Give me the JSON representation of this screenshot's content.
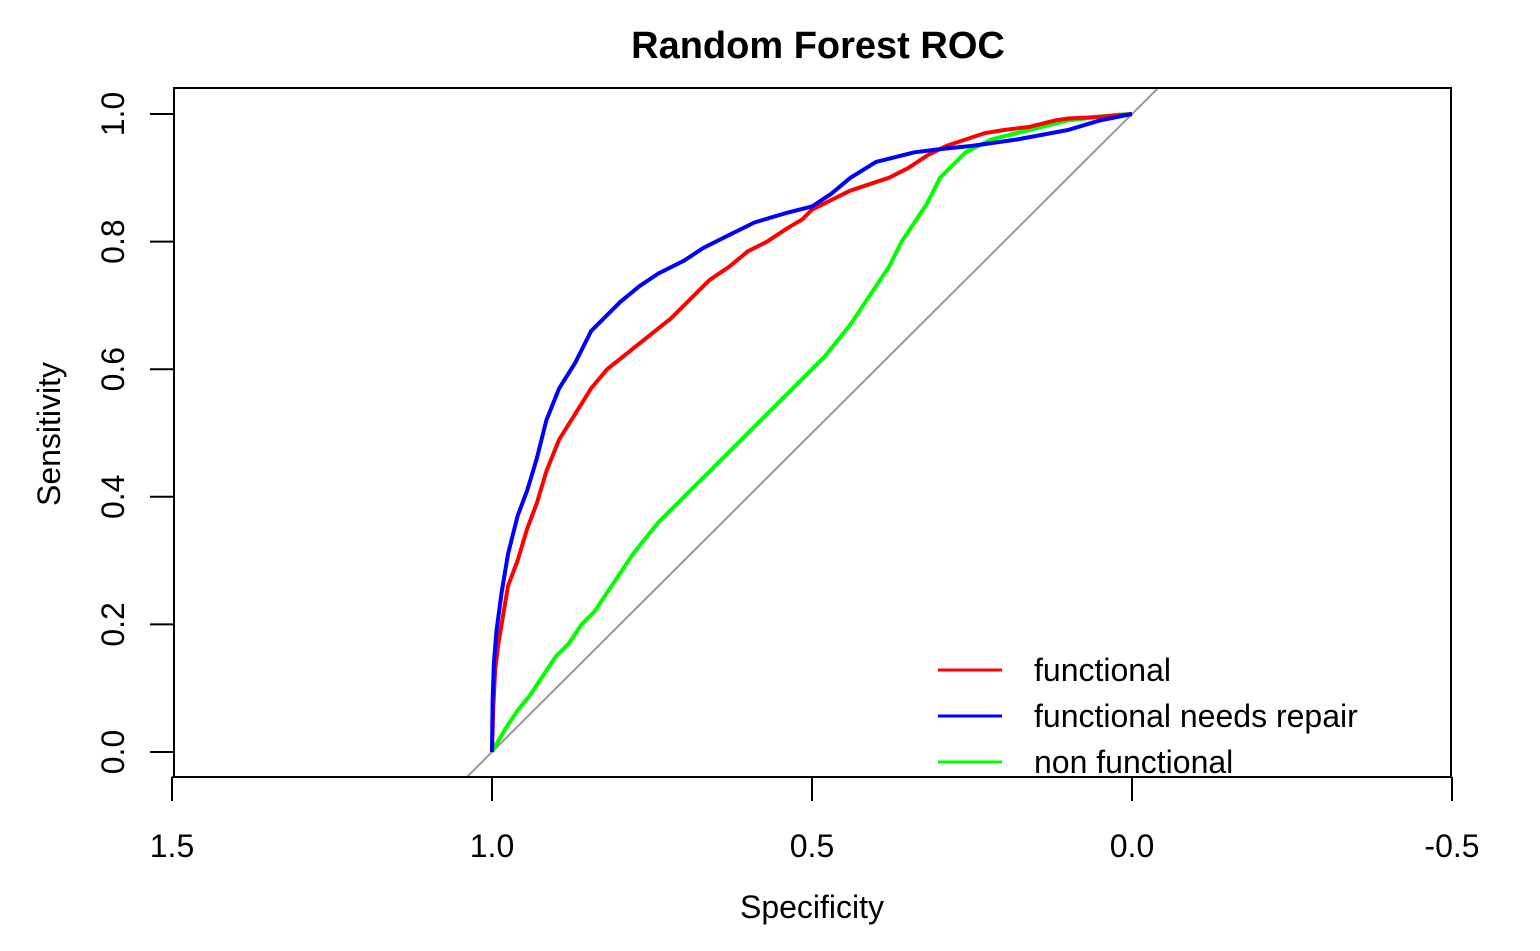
{
  "chart_data": {
    "type": "line",
    "title": "Random Forest ROC",
    "xlabel": "Specificity",
    "ylabel": "Sensitivity",
    "xlim": [
      1.5,
      -0.5
    ],
    "ylim": [
      0.0,
      1.0
    ],
    "x_reversed": true,
    "xticks": [
      1.5,
      1.0,
      0.5,
      0.0,
      -0.5
    ],
    "xtick_labels": [
      "1.5",
      "1.0",
      "0.5",
      "0.0",
      "-0.5"
    ],
    "yticks": [
      0.0,
      0.2,
      0.4,
      0.6,
      0.8,
      1.0
    ],
    "ytick_labels": [
      "0.0",
      "0.2",
      "0.4",
      "0.6",
      "0.8",
      "1.0"
    ],
    "grid": false,
    "legend_position": "bottom-right",
    "reference_line": {
      "color": "#999999",
      "x": [
        1.0,
        0.0
      ],
      "y": [
        0.0,
        1.0
      ]
    },
    "series": [
      {
        "name": "functional",
        "color": "#ff0000",
        "x": [
          1.0,
          0.998,
          0.995,
          0.99,
          0.985,
          0.975,
          0.96,
          0.945,
          0.93,
          0.915,
          0.895,
          0.87,
          0.845,
          0.82,
          0.795,
          0.77,
          0.745,
          0.72,
          0.69,
          0.66,
          0.63,
          0.6,
          0.57,
          0.54,
          0.515,
          0.5,
          0.47,
          0.44,
          0.41,
          0.38,
          0.35,
          0.32,
          0.29,
          0.26,
          0.23,
          0.2,
          0.16,
          0.12,
          0.1,
          0.06,
          0.03,
          0.0
        ],
        "y": [
          0.0,
          0.07,
          0.13,
          0.17,
          0.2,
          0.26,
          0.3,
          0.35,
          0.39,
          0.44,
          0.49,
          0.53,
          0.57,
          0.6,
          0.62,
          0.64,
          0.66,
          0.68,
          0.71,
          0.74,
          0.76,
          0.785,
          0.8,
          0.82,
          0.835,
          0.85,
          0.865,
          0.88,
          0.89,
          0.9,
          0.915,
          0.935,
          0.95,
          0.96,
          0.97,
          0.975,
          0.98,
          0.99,
          0.993,
          0.995,
          0.997,
          1.0
        ]
      },
      {
        "name": "functional needs repair",
        "color": "#0000ff",
        "x": [
          1.0,
          0.999,
          0.997,
          0.993,
          0.985,
          0.975,
          0.96,
          0.945,
          0.93,
          0.915,
          0.895,
          0.87,
          0.845,
          0.82,
          0.8,
          0.77,
          0.74,
          0.7,
          0.67,
          0.63,
          0.59,
          0.54,
          0.5,
          0.47,
          0.44,
          0.4,
          0.34,
          0.3,
          0.25,
          0.18,
          0.1,
          0.05,
          0.0
        ],
        "y": [
          0.0,
          0.08,
          0.14,
          0.19,
          0.25,
          0.31,
          0.37,
          0.41,
          0.46,
          0.52,
          0.57,
          0.61,
          0.66,
          0.685,
          0.705,
          0.73,
          0.75,
          0.77,
          0.79,
          0.81,
          0.83,
          0.845,
          0.855,
          0.875,
          0.9,
          0.925,
          0.94,
          0.945,
          0.95,
          0.96,
          0.975,
          0.99,
          1.0
        ]
      },
      {
        "name": "non functional",
        "color": "#00ff00",
        "x": [
          1.0,
          0.98,
          0.96,
          0.94,
          0.92,
          0.9,
          0.88,
          0.86,
          0.84,
          0.82,
          0.8,
          0.78,
          0.76,
          0.74,
          0.72,
          0.7,
          0.68,
          0.66,
          0.64,
          0.62,
          0.6,
          0.58,
          0.56,
          0.54,
          0.52,
          0.5,
          0.48,
          0.46,
          0.44,
          0.42,
          0.4,
          0.38,
          0.36,
          0.34,
          0.32,
          0.3,
          0.28,
          0.26,
          0.24,
          0.22,
          0.2,
          0.18,
          0.16,
          0.14,
          0.12,
          0.1,
          0.08,
          0.06,
          0.04,
          0.02,
          0.0
        ],
        "y": [
          0.0,
          0.035,
          0.065,
          0.09,
          0.12,
          0.15,
          0.17,
          0.2,
          0.22,
          0.25,
          0.28,
          0.31,
          0.335,
          0.36,
          0.38,
          0.4,
          0.42,
          0.44,
          0.46,
          0.48,
          0.5,
          0.52,
          0.54,
          0.56,
          0.58,
          0.6,
          0.62,
          0.645,
          0.67,
          0.7,
          0.73,
          0.76,
          0.8,
          0.83,
          0.86,
          0.9,
          0.92,
          0.94,
          0.95,
          0.96,
          0.965,
          0.97,
          0.975,
          0.98,
          0.985,
          0.99,
          0.992,
          0.995,
          0.997,
          0.999,
          1.0
        ]
      }
    ]
  }
}
